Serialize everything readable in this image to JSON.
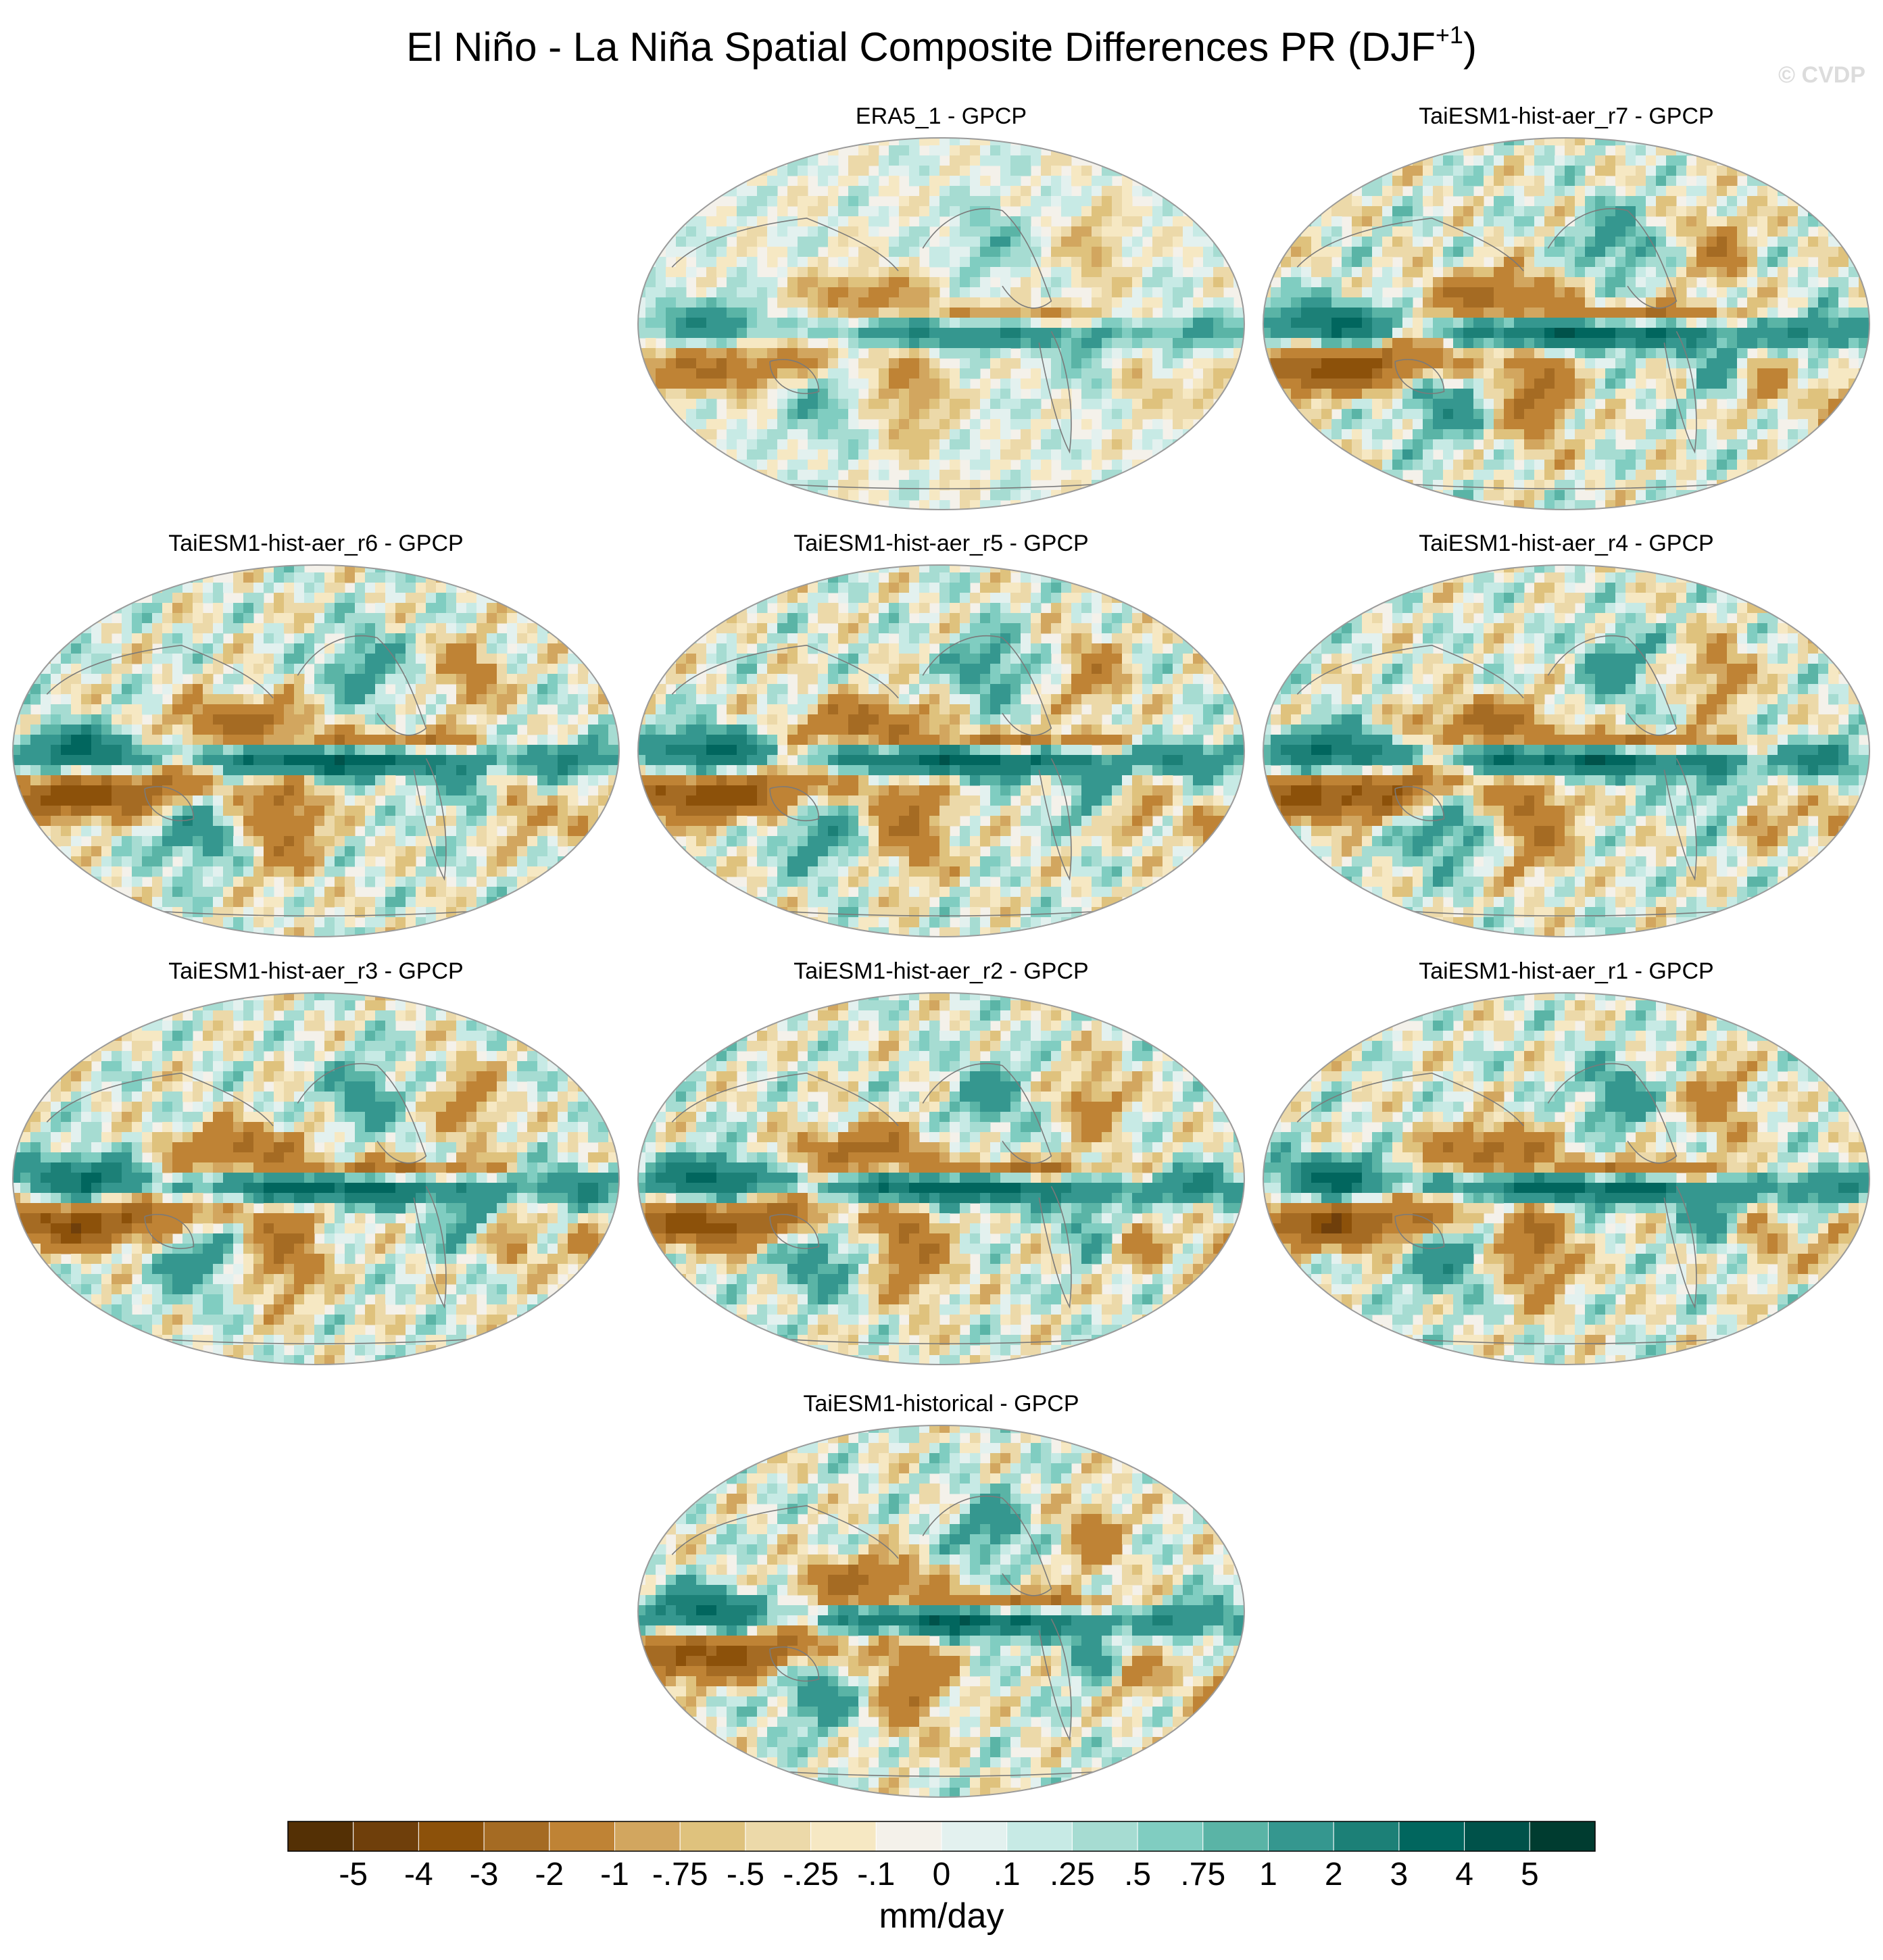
{
  "figure": {
    "title": "El Niño - La Niña Spatial Composite Differences PR (DJF",
    "title_sup": "+1",
    "title_end": ")",
    "watermark": "© CVDP"
  },
  "chart_data": {
    "type": "heatmap",
    "projection": "global ellipse map",
    "panels": [
      {
        "title": "ERA5_1 - GPCP",
        "type": "heatmap",
        "amplitude": 0.55
      },
      {
        "title": "TaiESM1-hist-aer_r7 - GPCP",
        "type": "heatmap",
        "amplitude": 1.0
      },
      {
        "title": "TaiESM1-hist-aer_r6 - GPCP",
        "type": "heatmap",
        "amplitude": 1.0
      },
      {
        "title": "TaiESM1-hist-aer_r5 - GPCP",
        "type": "heatmap",
        "amplitude": 1.0
      },
      {
        "title": "TaiESM1-hist-aer_r4 - GPCP",
        "type": "heatmap",
        "amplitude": 1.0
      },
      {
        "title": "TaiESM1-hist-aer_r3 - GPCP",
        "type": "heatmap",
        "amplitude": 1.0
      },
      {
        "title": "TaiESM1-hist-aer_r2 - GPCP",
        "type": "heatmap",
        "amplitude": 1.0
      },
      {
        "title": "TaiESM1-hist-aer_r1 - GPCP",
        "type": "heatmap",
        "amplitude": 1.0
      },
      {
        "title": "TaiESM1-historical - GPCP",
        "type": "heatmap",
        "amplitude": 1.0
      }
    ],
    "colorbar": {
      "label": "mm/day",
      "tick_labels": [
        "-5",
        "-4",
        "-3",
        "-2",
        "-1",
        "-.75",
        "-.5",
        "-.25",
        "-.1",
        "0",
        ".1",
        ".25",
        ".5",
        ".75",
        "1",
        "2",
        "3",
        "4",
        "5"
      ],
      "colors": [
        "#543005",
        "#6f3f0b",
        "#8c510a",
        "#a56b23",
        "#bf8335",
        "#d2a65f",
        "#dfc27d",
        "#ecd9a9",
        "#f6e8c3",
        "#f4f1ea",
        "#e3f1ef",
        "#c7eae5",
        "#a6dcd2",
        "#80cdc1",
        "#5ab4a6",
        "#35978f",
        "#1c8077",
        "#01665e",
        "#00524a",
        "#003c30"
      ]
    }
  }
}
